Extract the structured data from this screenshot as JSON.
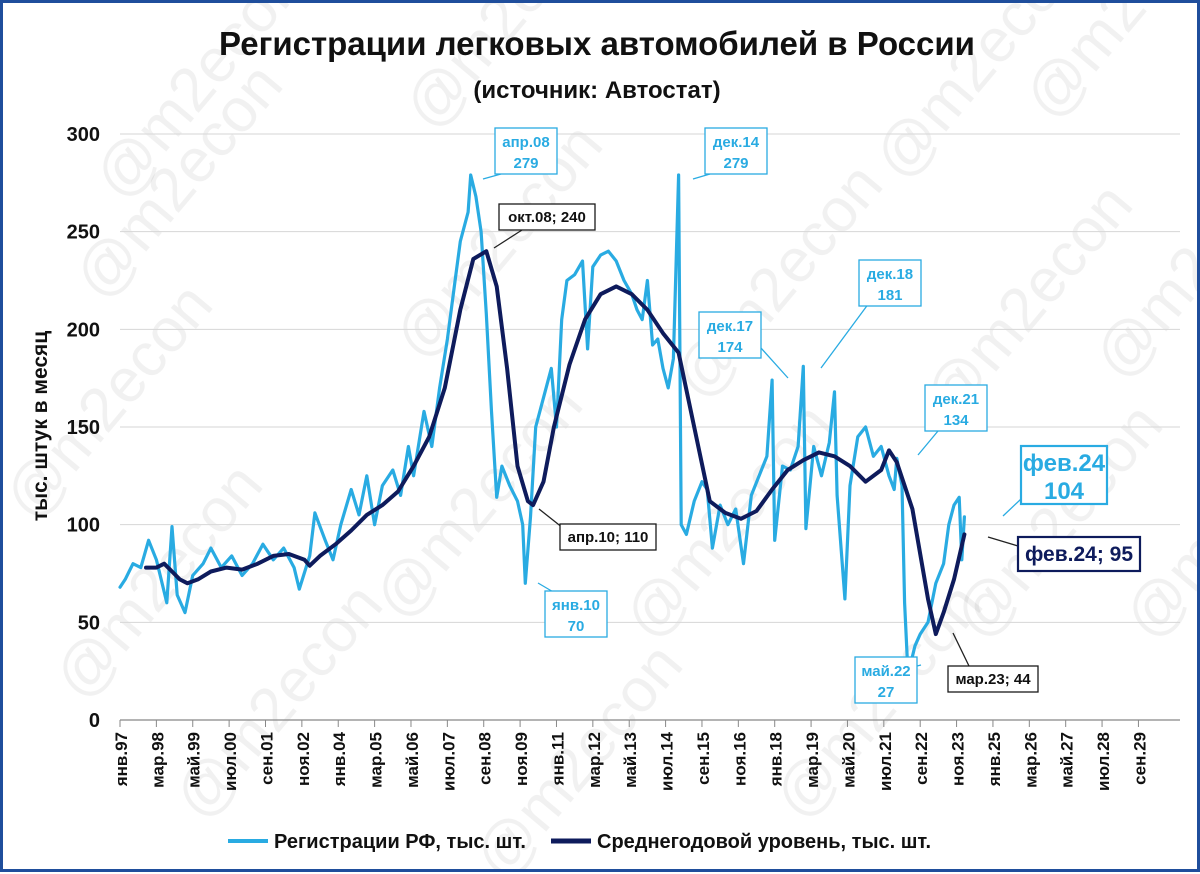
{
  "chart_data": {
    "type": "line",
    "title": "Регистрации легковых автомобилей в России",
    "subtitle": "(источник: Автостат)",
    "ylabel": "тыс. штук в месяц",
    "ylim": [
      0,
      300
    ],
    "y_ticks": [
      "0",
      "50",
      "100",
      "150",
      "200",
      "250",
      "300"
    ],
    "grid": true,
    "legend_position": "bottom",
    "x_tick_labels": [
      "янв.97",
      "мар.98",
      "май.99",
      "июл.00",
      "сен.01",
      "ноя.02",
      "янв.04",
      "мар.05",
      "май.06",
      "июл.07",
      "сен.08",
      "ноя.09",
      "янв.11",
      "мар.12",
      "май.13",
      "июл.14",
      "сен.15",
      "ноя.16",
      "янв.18",
      "мар.19",
      "май.20",
      "июл.21",
      "сен.22",
      "ноя.23",
      "янв.25",
      "мар.26",
      "май.27",
      "июл.28",
      "сен.29"
    ],
    "watermark": "@m2econ",
    "series": [
      {
        "name": "Регистрации РФ, тыс. шт.",
        "color": "#29abe2",
        "points": [
          [
            "янв.97",
            68
          ],
          [
            "мар.97",
            72
          ],
          [
            "июн.97",
            80
          ],
          [
            "сен.97",
            78
          ],
          [
            "дек.97",
            92
          ],
          [
            "мар.98",
            82
          ],
          [
            "июл.98",
            60
          ],
          [
            "сен.98",
            99
          ],
          [
            "ноя.98",
            64
          ],
          [
            "фев.99",
            55
          ],
          [
            "май.99",
            74
          ],
          [
            "сен.99",
            80
          ],
          [
            "дек.99",
            88
          ],
          [
            "апр.00",
            78
          ],
          [
            "авг.00",
            84
          ],
          [
            "дек.00",
            74
          ],
          [
            "апр.01",
            80
          ],
          [
            "авг.01",
            90
          ],
          [
            "дек.01",
            82
          ],
          [
            "апр.02",
            88
          ],
          [
            "авг.02",
            78
          ],
          [
            "окт.02",
            67
          ],
          [
            "фев.03",
            84
          ],
          [
            "апр.03",
            106
          ],
          [
            "авг.03",
            92
          ],
          [
            "ноя.03",
            82
          ],
          [
            "фев.04",
            100
          ],
          [
            "июн.04",
            118
          ],
          [
            "сен.04",
            105
          ],
          [
            "дек.04",
            125
          ],
          [
            "мар.05",
            100
          ],
          [
            "июн.05",
            120
          ],
          [
            "окт.05",
            128
          ],
          [
            "янв.06",
            115
          ],
          [
            "апр.06",
            140
          ],
          [
            "июн.06",
            125
          ],
          [
            "окт.06",
            158
          ],
          [
            "янв.07",
            140
          ],
          [
            "апр.07",
            170
          ],
          [
            "июл.07",
            195
          ],
          [
            "окт.07",
            225
          ],
          [
            "дек.07",
            245
          ],
          [
            "мар.08",
            260
          ],
          [
            "апр.08",
            279
          ],
          [
            "июн.08",
            268
          ],
          [
            "авг.08",
            250
          ],
          [
            "окт.08",
            208
          ],
          [
            "дек.08",
            158
          ],
          [
            "фев.09",
            114
          ],
          [
            "апр.09",
            130
          ],
          [
            "июл.09",
            120
          ],
          [
            "окт.09",
            112
          ],
          [
            "дек.09",
            100
          ],
          [
            "янв.10",
            70
          ],
          [
            "мар.10",
            104
          ],
          [
            "май.10",
            150
          ],
          [
            "авг.10",
            165
          ],
          [
            "ноя.10",
            180
          ],
          [
            "янв.11",
            150
          ],
          [
            "мар.11",
            205
          ],
          [
            "май.11",
            225
          ],
          [
            "авг.11",
            228
          ],
          [
            "ноя.11",
            235
          ],
          [
            "янв.12",
            190
          ],
          [
            "мар.12",
            232
          ],
          [
            "июн.12",
            238
          ],
          [
            "сен.12",
            240
          ],
          [
            "дек.12",
            235
          ],
          [
            "мар.13",
            225
          ],
          [
            "июн.13",
            218
          ],
          [
            "авг.13",
            210
          ],
          [
            "окт.13",
            205
          ],
          [
            "дек.13",
            225
          ],
          [
            "фев.14",
            192
          ],
          [
            "апр.14",
            195
          ],
          [
            "июн.14",
            180
          ],
          [
            "авг.14",
            170
          ],
          [
            "окт.14",
            185
          ],
          [
            "дек.14",
            279
          ],
          [
            "янв.15",
            100
          ],
          [
            "мар.15",
            95
          ],
          [
            "июн.15",
            112
          ],
          [
            "сен.15",
            122
          ],
          [
            "ноя.15",
            118
          ],
          [
            "янв.16",
            88
          ],
          [
            "апр.16",
            110
          ],
          [
            "июл.16",
            100
          ],
          [
            "окт.16",
            108
          ],
          [
            "янв.17",
            80
          ],
          [
            "апр.17",
            115
          ],
          [
            "июл.17",
            125
          ],
          [
            "окт.17",
            135
          ],
          [
            "дек.17",
            174
          ],
          [
            "янв.18",
            92
          ],
          [
            "апр.18",
            130
          ],
          [
            "июл.18",
            128
          ],
          [
            "окт.18",
            140
          ],
          [
            "дек.18",
            181
          ],
          [
            "янв.19",
            98
          ],
          [
            "апр.19",
            140
          ],
          [
            "июл.19",
            125
          ],
          [
            "окт.19",
            142
          ],
          [
            "дек.19",
            168
          ],
          [
            "янв.20",
            115
          ],
          [
            "апр.20",
            62
          ],
          [
            "июн.20",
            120
          ],
          [
            "сен.20",
            145
          ],
          [
            "дек.20",
            150
          ],
          [
            "мар.21",
            135
          ],
          [
            "июн.21",
            140
          ],
          [
            "сен.21",
            125
          ],
          [
            "ноя.21",
            118
          ],
          [
            "дек.21",
            134
          ],
          [
            "фев.22",
            120
          ],
          [
            "мар.22",
            60
          ],
          [
            "апр.22",
            32
          ],
          [
            "май.22",
            27
          ],
          [
            "июл.22",
            38
          ],
          [
            "сен.22",
            44
          ],
          [
            "дек.22",
            50
          ],
          [
            "мар.23",
            70
          ],
          [
            "июн.23",
            80
          ],
          [
            "авг.23",
            100
          ],
          [
            "окт.23",
            110
          ],
          [
            "дек.23",
            114
          ],
          [
            "янв.24",
            82
          ],
          [
            "фев.24",
            104
          ]
        ]
      },
      {
        "name": "Среднегодовой уровень, тыс. шт.",
        "color": "#0e1b5c",
        "points": [
          [
            "ноя.97",
            78
          ],
          [
            "мар.98",
            78
          ],
          [
            "июн.98",
            80
          ],
          [
            "сен.98",
            76
          ],
          [
            "дек.98",
            72
          ],
          [
            "мар.99",
            70
          ],
          [
            "июл.99",
            72
          ],
          [
            "дек.99",
            76
          ],
          [
            "июн.00",
            78
          ],
          [
            "дек.00",
            77
          ],
          [
            "июн.01",
            80
          ],
          [
            "дек.01",
            84
          ],
          [
            "июн.02",
            85
          ],
          [
            "дек.02",
            82
          ],
          [
            "фев.03",
            79
          ],
          [
            "июн.03",
            84
          ],
          [
            "дек.03",
            90
          ],
          [
            "июн.04",
            97
          ],
          [
            "дек.04",
            105
          ],
          [
            "июн.05",
            110
          ],
          [
            "дек.05",
            117
          ],
          [
            "июн.06",
            130
          ],
          [
            "дек.06",
            145
          ],
          [
            "июн.07",
            170
          ],
          [
            "дек.07",
            210
          ],
          [
            "май.08",
            236
          ],
          [
            "окт.08",
            240
          ],
          [
            "фев.09",
            222
          ],
          [
            "июн.09",
            180
          ],
          [
            "окт.09",
            130
          ],
          [
            "фев.10",
            112
          ],
          [
            "апр.10",
            110
          ],
          [
            "авг.10",
            122
          ],
          [
            "дек.10",
            150
          ],
          [
            "июн.11",
            182
          ],
          [
            "дек.11",
            205
          ],
          [
            "июн.12",
            218
          ],
          [
            "дек.12",
            222
          ],
          [
            "июн.13",
            218
          ],
          [
            "дек.13",
            210
          ],
          [
            "июн.14",
            198
          ],
          [
            "дек.14",
            188
          ],
          [
            "июн.15",
            150
          ],
          [
            "дек.15",
            112
          ],
          [
            "июн.16",
            106
          ],
          [
            "дек.16",
            103
          ],
          [
            "июн.17",
            107
          ],
          [
            "дек.17",
            118
          ],
          [
            "июн.18",
            128
          ],
          [
            "дек.18",
            133
          ],
          [
            "июн.19",
            137
          ],
          [
            "дек.19",
            135
          ],
          [
            "июн.20",
            130
          ],
          [
            "дек.20",
            122
          ],
          [
            "июн.21",
            128
          ],
          [
            "сен.21",
            138
          ],
          [
            "дек.21",
            132
          ],
          [
            "июн.22",
            108
          ],
          [
            "дек.22",
            62
          ],
          [
            "мар.23",
            44
          ],
          [
            "июн.23",
            55
          ],
          [
            "окт.23",
            72
          ],
          [
            "фев.24",
            95
          ]
        ]
      }
    ],
    "annotations": [
      {
        "label": "апр.08",
        "value": "279",
        "style": "light"
      },
      {
        "label": "дек.14",
        "value": "279",
        "style": "light"
      },
      {
        "label": "окт.08; 240",
        "style": "dark"
      },
      {
        "label": "дек.17",
        "value": "174",
        "style": "light"
      },
      {
        "label": "дек.18",
        "value": "181",
        "style": "light"
      },
      {
        "label": "апр.10; 110",
        "style": "dark"
      },
      {
        "label": "янв.10",
        "value": "70",
        "style": "light"
      },
      {
        "label": "дек.21",
        "value": "134",
        "style": "light"
      },
      {
        "label": "фев.24",
        "value": "104",
        "style": "light-big"
      },
      {
        "label": "фев.24; 95",
        "style": "dark-big"
      },
      {
        "label": "май.22",
        "value": "27",
        "style": "light"
      },
      {
        "label": "мар.23; 44",
        "style": "dark"
      }
    ]
  }
}
